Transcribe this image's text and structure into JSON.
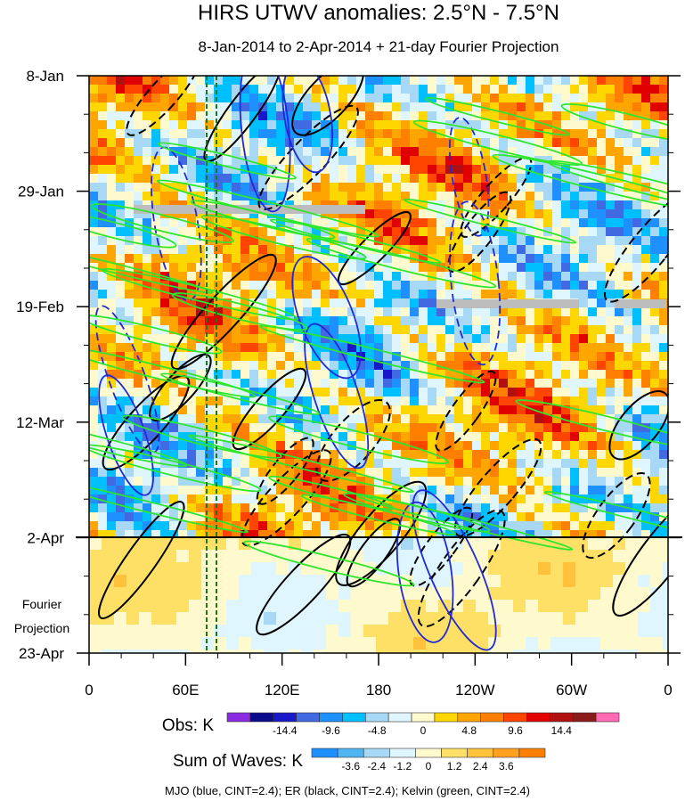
{
  "chart_data": {
    "type": "heatmap",
    "title": "HIRS UTWV anomalies: 2.5°N - 7.5°N",
    "subtitle": "8-Jan-2014 to 2-Apr-2014 + 21-day Fourier Projection",
    "y_ticks": [
      "8-Jan",
      "29-Jan",
      "19-Feb",
      "12-Mar",
      "2-Apr",
      "23-Apr"
    ],
    "x_ticks": [
      "0",
      "60E",
      "120E",
      "180",
      "120W",
      "60W",
      "0"
    ],
    "projection_label_1": "Fourier",
    "projection_label_2": "Projection",
    "observation_end": "2-Apr",
    "longitude_range": [
      0,
      360
    ],
    "time_range_days": [
      0,
      105
    ],
    "obs_legend": {
      "label": "Obs: K",
      "colors": [
        "#8a2be2",
        "#0a0a8c",
        "#1818c8",
        "#4169e1",
        "#1e90ff",
        "#00bfff",
        "#a7d8f5",
        "#e0f6ff",
        "#fffacd",
        "#ffd700",
        "#ffa500",
        "#ff7f00",
        "#ff4500",
        "#e00000",
        "#b01010",
        "#8b1a1a",
        "#ff69b4"
      ],
      "tick_labels": [
        "-14.4",
        "-9.6",
        "-4.8",
        "0",
        "4.8",
        "9.6",
        "14.4"
      ]
    },
    "waves_legend": {
      "label": "Sum of Waves: K",
      "colors": [
        "#1e90ff",
        "#4fb6f2",
        "#a7d8f5",
        "#e0f6ff",
        "#fffacd",
        "#ffe066",
        "#ffc23a",
        "#ffa020",
        "#ff7f00"
      ],
      "tick_labels": [
        "-3.6",
        "-2.4",
        "-1.2",
        "0",
        "1.2",
        "2.4",
        "3.6"
      ]
    },
    "footnote": "MJO (blue, CINT=2.4); ER (black, CINT=2.4); Kelvin (green, CINT=2.4)",
    "wave_colors": {
      "MJO": "#1f2ad6",
      "ER": "#000000",
      "Kelvin": "#2ee62e"
    }
  }
}
